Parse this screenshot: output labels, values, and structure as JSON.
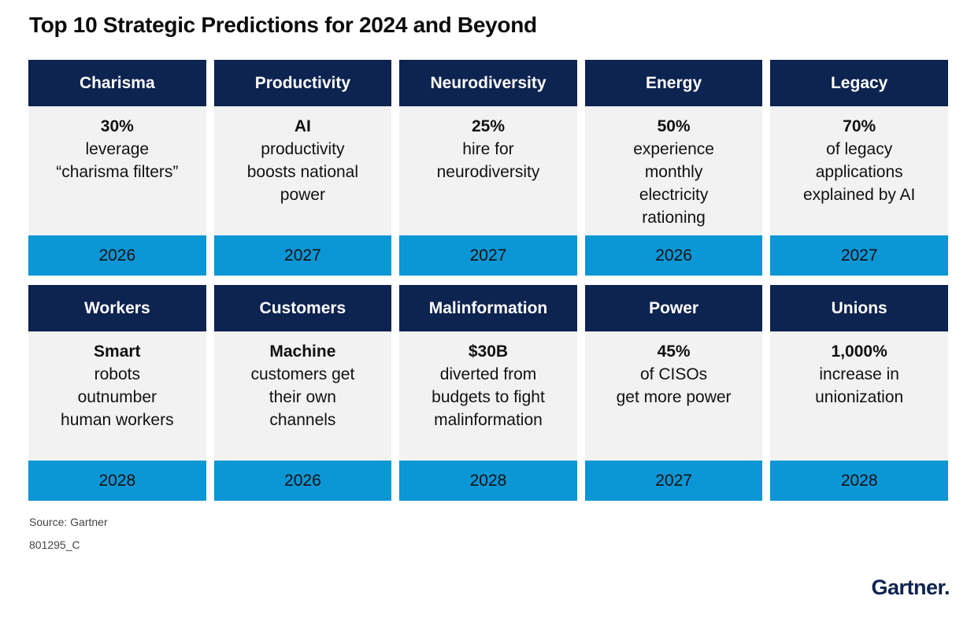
{
  "title": "Top 10 Strategic Predictions for 2024 and Beyond",
  "rows": [
    [
      {
        "header": "Charisma",
        "stat": "30%",
        "desc": "leverage\n“charisma filters”",
        "year": "2026"
      },
      {
        "header": "Productivity",
        "stat": "AI",
        "desc": "productivity\nboosts national\npower",
        "year": "2027"
      },
      {
        "header": "Neurodiversity",
        "stat": "25%",
        "desc": "hire for\nneurodiversity",
        "year": "2027"
      },
      {
        "header": "Energy",
        "stat": "50%",
        "desc": "experience\nmonthly\nelectricity\nrationing",
        "year": "2026"
      },
      {
        "header": "Legacy",
        "stat": "70%",
        "desc": "of legacy\napplications\nexplained by AI",
        "year": "2027"
      }
    ],
    [
      {
        "header": "Workers",
        "stat": "Smart",
        "desc": "robots\noutnumber\nhuman workers",
        "year": "2028"
      },
      {
        "header": "Customers",
        "stat": "Machine",
        "desc": "customers get\ntheir own\nchannels",
        "year": "2026"
      },
      {
        "header": "Malinformation",
        "stat": "$30B",
        "desc": "diverted from\nbudgets to fight\nmalinformation",
        "year": "2028"
      },
      {
        "header": "Power",
        "stat": "45%",
        "desc": "of CISOs\nget more power",
        "year": "2027"
      },
      {
        "header": "Unions",
        "stat": "1,000%",
        "desc": "increase in\nunionization",
        "year": "2028"
      }
    ]
  ],
  "source": "Source: Gartner",
  "code": "801295_C",
  "logo": "Gartner.",
  "colors": {
    "header_bg": "#0d2350",
    "body_bg": "#f2f2f2",
    "year_bg": "#0b96d5"
  }
}
